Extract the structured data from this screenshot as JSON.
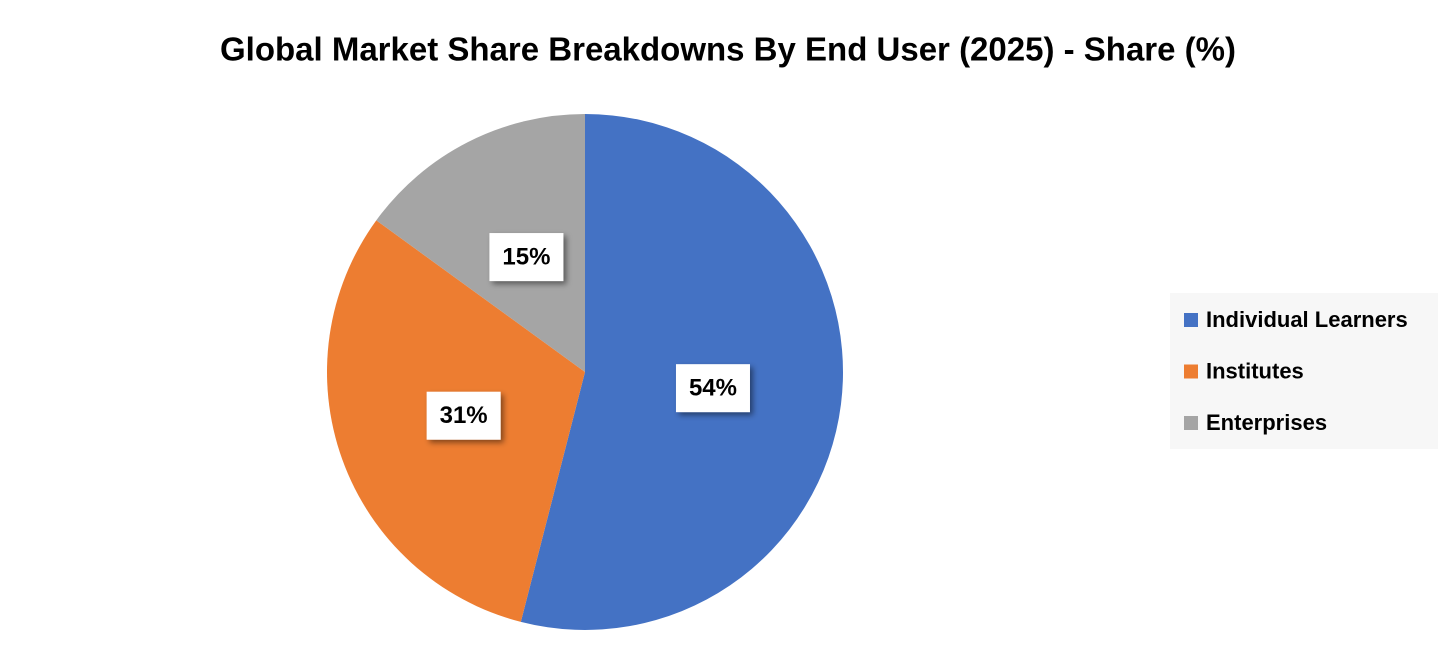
{
  "chart_data": {
    "type": "pie",
    "title": "Global Market Share Breakdowns By End User (2025) - Share (%)",
    "categories": [
      "Individual Learners",
      "Institutes",
      "Enterprises"
    ],
    "values": [
      54,
      31,
      15
    ],
    "value_labels": [
      "54%",
      "31%",
      "15%"
    ],
    "colors": [
      "#4472c4",
      "#ed7d31",
      "#a5a5a5"
    ],
    "legend": "right"
  }
}
